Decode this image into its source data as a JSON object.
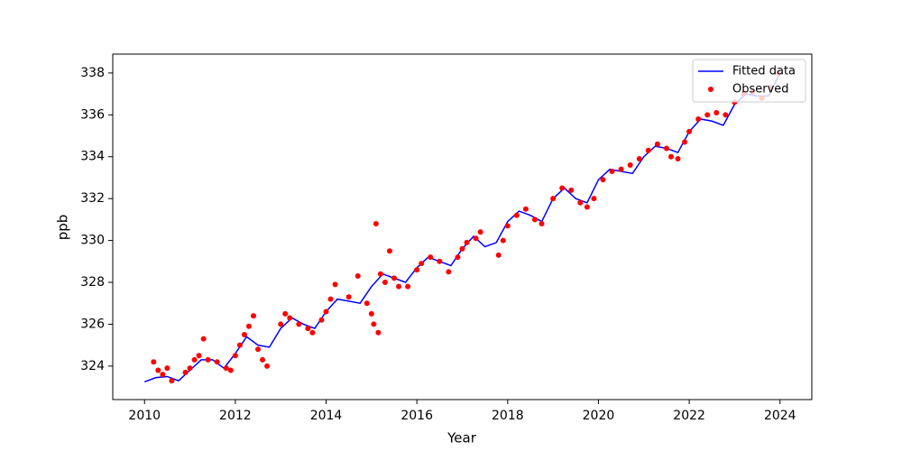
{
  "chart_data": {
    "type": "line-scatter",
    "x_label": "Year",
    "y_label": "ppb",
    "xlim": [
      2009.3,
      2024.7
    ],
    "ylim": [
      322.4,
      338.9
    ],
    "xticks": [
      2010,
      2012,
      2014,
      2016,
      2018,
      2020,
      2022,
      2024
    ],
    "yticks": [
      324,
      326,
      328,
      330,
      332,
      334,
      336,
      338
    ],
    "legend": "upper right",
    "series": [
      {
        "name": "Fitted data",
        "kind": "line",
        "color": "#0000ff",
        "x": [
          2010,
          2010.25,
          2010.5,
          2010.75,
          2011,
          2011.25,
          2011.5,
          2011.75,
          2012,
          2012.25,
          2012.5,
          2012.75,
          2013,
          2013.25,
          2013.5,
          2013.75,
          2014,
          2014.25,
          2014.5,
          2014.75,
          2015,
          2015.25,
          2015.5,
          2015.75,
          2016,
          2016.25,
          2016.5,
          2016.75,
          2017,
          2017.25,
          2017.5,
          2017.75,
          2018,
          2018.25,
          2018.5,
          2018.75,
          2019,
          2019.25,
          2019.5,
          2019.75,
          2020,
          2020.25,
          2020.5,
          2020.75,
          2021,
          2021.25,
          2021.5,
          2021.75,
          2022,
          2022.25,
          2022.5,
          2022.75,
          2023,
          2023.25,
          2023.5,
          2023.75,
          2024
        ],
        "values": [
          323.25,
          323.45,
          323.5,
          323.3,
          323.8,
          324.3,
          324.3,
          323.9,
          324.6,
          325.4,
          325.0,
          324.9,
          325.8,
          326.3,
          326.0,
          325.8,
          326.6,
          327.2,
          327.1,
          327.0,
          327.8,
          328.4,
          328.2,
          328.0,
          328.7,
          329.2,
          329.0,
          328.8,
          329.6,
          330.2,
          329.7,
          329.9,
          330.9,
          331.4,
          331.2,
          330.9,
          332.0,
          332.5,
          332.0,
          331.8,
          332.9,
          333.4,
          333.3,
          333.2,
          334.0,
          334.5,
          334.4,
          334.2,
          335.2,
          335.8,
          335.7,
          335.5,
          336.5,
          337.0,
          336.9,
          336.9,
          338.0
        ]
      },
      {
        "name": "Observed",
        "kind": "scatter",
        "color": "#ff0000",
        "x": [
          2010.2,
          2010.3,
          2010.4,
          2010.5,
          2010.6,
          2010.9,
          2011.0,
          2011.1,
          2011.2,
          2011.3,
          2011.4,
          2011.6,
          2011.8,
          2011.9,
          2012.0,
          2012.1,
          2012.2,
          2012.3,
          2012.4,
          2012.5,
          2012.6,
          2012.7,
          2013.0,
          2013.1,
          2013.2,
          2013.4,
          2013.6,
          2013.7,
          2013.9,
          2014.0,
          2014.1,
          2014.2,
          2014.5,
          2014.7,
          2014.9,
          2015.0,
          2015.05,
          2015.1,
          2015.15,
          2015.2,
          2015.3,
          2015.4,
          2015.5,
          2015.6,
          2015.8,
          2016.0,
          2016.1,
          2016.3,
          2016.5,
          2016.7,
          2016.9,
          2017.0,
          2017.1,
          2017.3,
          2017.4,
          2017.8,
          2017.9,
          2018.0,
          2018.2,
          2018.4,
          2018.6,
          2018.75,
          2019.0,
          2019.2,
          2019.4,
          2019.6,
          2019.75,
          2019.9,
          2020.1,
          2020.3,
          2020.5,
          2020.7,
          2020.9,
          2021.1,
          2021.3,
          2021.5,
          2021.6,
          2021.75,
          2021.9,
          2022.0,
          2022.2,
          2022.4,
          2022.6,
          2022.8,
          2023.0,
          2023.2,
          2023.4,
          2023.6,
          2023.8,
          2023.95
        ],
        "values": [
          324.2,
          323.8,
          323.6,
          323.9,
          323.3,
          323.7,
          323.9,
          324.3,
          324.5,
          325.3,
          324.3,
          324.2,
          323.9,
          323.8,
          324.5,
          325.0,
          325.5,
          325.9,
          326.4,
          324.8,
          324.3,
          324.0,
          326.0,
          326.5,
          326.3,
          326.0,
          325.8,
          325.6,
          326.2,
          326.6,
          327.2,
          327.9,
          327.3,
          328.3,
          327.0,
          326.5,
          326.0,
          330.8,
          325.6,
          328.4,
          328.0,
          329.5,
          328.2,
          327.8,
          327.8,
          328.6,
          328.9,
          329.2,
          329.0,
          328.5,
          329.2,
          329.6,
          329.9,
          330.1,
          330.4,
          329.3,
          330.0,
          330.7,
          331.2,
          331.5,
          331.0,
          330.8,
          332.0,
          332.5,
          332.4,
          331.8,
          331.6,
          332.0,
          332.9,
          333.3,
          333.4,
          333.6,
          333.9,
          334.3,
          334.6,
          334.4,
          334.0,
          333.9,
          334.7,
          335.2,
          335.8,
          336.0,
          336.1,
          336.0,
          336.6,
          337.0,
          337.1,
          336.8,
          337.3,
          338.0
        ]
      }
    ]
  }
}
